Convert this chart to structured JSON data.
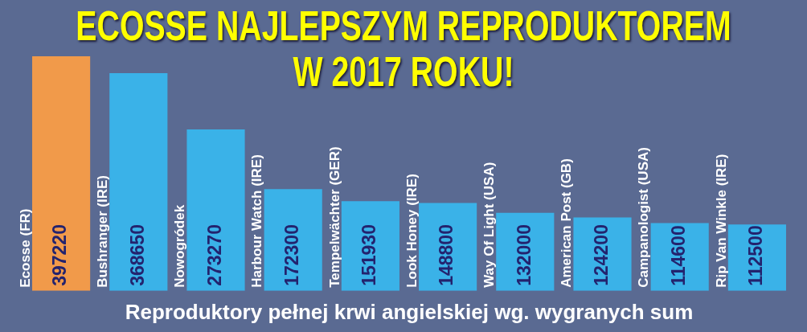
{
  "chart_data": {
    "type": "bar",
    "title": "ECOSSE NAJLEPSZYM REPRODUKTOREM W 2017 ROKU!",
    "xlabel": "Reproduktory pełnej krwi angielskiej wg. wygranych sum",
    "categories": [
      "Ecosse (FR)",
      "Bushranger (IRE)",
      "Nowogródek",
      "Harbour Watch (IRE)",
      "Tempelwächter (GER)",
      "Look Honey (IRE)",
      "Way Of Light (USA)",
      "American Post (GB)",
      "Campanologist (USA)",
      "Rip Van Winkle (IRE)"
    ],
    "values": [
      397220,
      368650,
      273270,
      172300,
      151930,
      148800,
      132000,
      124200,
      114600,
      112500
    ],
    "colors": [
      "#f19a4a",
      "#3ab2e8",
      "#3ab2e8",
      "#3ab2e8",
      "#3ab2e8",
      "#3ab2e8",
      "#3ab2e8",
      "#3ab2e8",
      "#3ab2e8",
      "#3ab2e8"
    ],
    "data_labels": true
  }
}
